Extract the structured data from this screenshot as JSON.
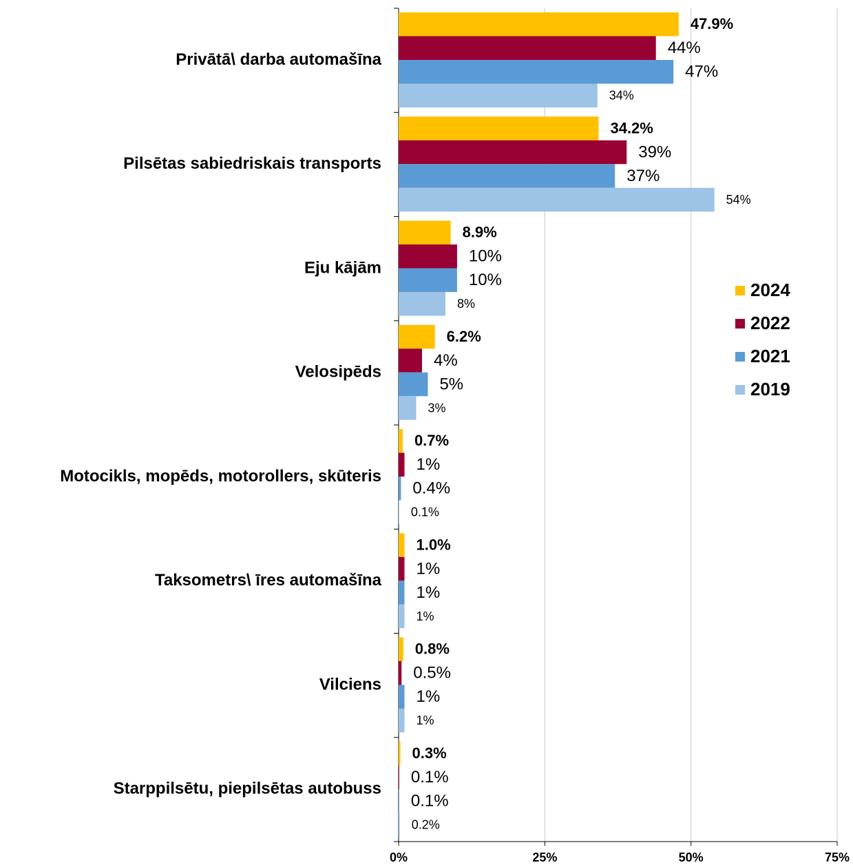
{
  "chart_data": {
    "type": "bar",
    "orientation": "horizontal",
    "categories": [
      "Privātā\\ darba automašīna",
      "Pilsētas sabiedriskais transports",
      "Eju kājām",
      "Velosipēds",
      "Motocikls, mopēds, motorollers, skūteris",
      "Taksometrs\\ īres automašīna",
      "Vilciens",
      "Starppilsētu, piepilsētas autobuss"
    ],
    "series": [
      {
        "name": "2024",
        "color": "#ffc000",
        "values": [
          47.9,
          34.2,
          8.9,
          6.2,
          0.7,
          1,
          0.8,
          0.3
        ],
        "value_labels": [
          "47.9%",
          "34.2%",
          "8.9%",
          "6.2%",
          "0.7%",
          "1.0%",
          "0.8%",
          "0.3%"
        ]
      },
      {
        "name": "2022",
        "color": "#990033",
        "values": [
          44,
          39,
          10,
          4,
          1,
          1,
          0.5,
          0.1
        ],
        "value_labels": [
          "44%",
          "39%",
          "10%",
          "4%",
          "1%",
          "1%",
          "0.5%",
          "0.1%"
        ]
      },
      {
        "name": "2021",
        "color": "#5b9bd5",
        "values": [
          47,
          37,
          10,
          5,
          0.4,
          1,
          1,
          0.1
        ],
        "value_labels": [
          "47%",
          "37%",
          "10%",
          "5%",
          "0.4%",
          "1%",
          "1%",
          "0.1%"
        ]
      },
      {
        "name": "2019",
        "color": "#9dc3e6",
        "values": [
          34,
          54,
          8,
          3,
          0.1,
          1,
          1,
          0.2
        ],
        "value_labels": [
          "34%",
          "54%",
          "8%",
          "3%",
          "0.1%",
          "1%",
          "1%",
          "0.2%"
        ]
      }
    ],
    "xlim": [
      0,
      75
    ],
    "xticks": [
      {
        "value": 0,
        "label": "0%"
      },
      {
        "value": 25,
        "label": "25%"
      },
      {
        "value": 50,
        "label": "50%"
      },
      {
        "value": 75,
        "label": "75%"
      }
    ],
    "grid": true,
    "legend": "right"
  }
}
